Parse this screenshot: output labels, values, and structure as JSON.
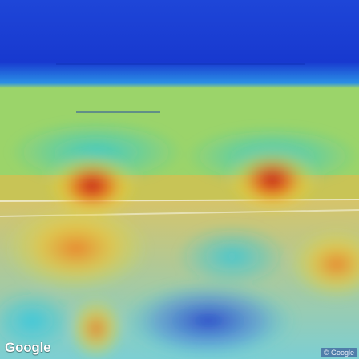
{
  "view": {
    "type": "street-view-heatmap",
    "scene": "beach",
    "overlay": "attention-heatmap"
  },
  "watermark": {
    "logo_text": "Google",
    "copyright_text": "© Google"
  },
  "colors": {
    "sky": "#1a3bd0",
    "hot": "#c81e1e",
    "warm": "#f0a020",
    "cool": "#2ad0e0",
    "cold": "#1f3fd4"
  }
}
